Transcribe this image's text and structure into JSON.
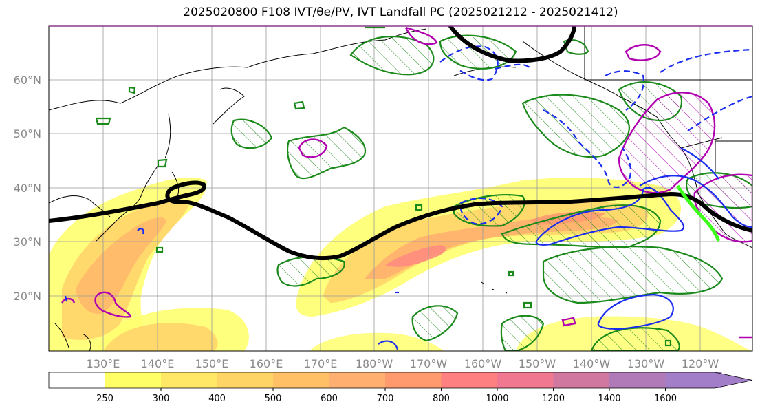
{
  "title": "2025020800 F108 IVT/θe/PV, IVT Landfall PC (2025021212 - 2025021412)",
  "map": {
    "lat_labels": [
      "60°N",
      "50°N",
      "40°N",
      "30°N",
      "20°N"
    ],
    "lon_labels": [
      "130°E",
      "140°E",
      "150°E",
      "160°E",
      "170°E",
      "180°W",
      "170°W",
      "160°W",
      "150°W",
      "140°W",
      "130°W",
      "120°W"
    ],
    "contour_colors": {
      "ivt_outline": "#000000",
      "pv_hatched": "#1a8a1a",
      "theta_e_warm": "#b000b0",
      "theta_e_cold": "#1a2cf0",
      "landfall": "#3cff1a"
    }
  },
  "colorbar": {
    "ticks": [
      "250",
      "300",
      "400",
      "500",
      "600",
      "700",
      "800",
      "1000",
      "1200",
      "1400",
      "1600"
    ],
    "colors": [
      "#ffffff",
      "#ffff66",
      "#ffe866",
      "#ffd466",
      "#ffc066",
      "#ffb070",
      "#ff9a6e",
      "#ff8080",
      "#f07890",
      "#d078a0",
      "#b07ab8",
      "#a37ec8"
    ]
  }
}
